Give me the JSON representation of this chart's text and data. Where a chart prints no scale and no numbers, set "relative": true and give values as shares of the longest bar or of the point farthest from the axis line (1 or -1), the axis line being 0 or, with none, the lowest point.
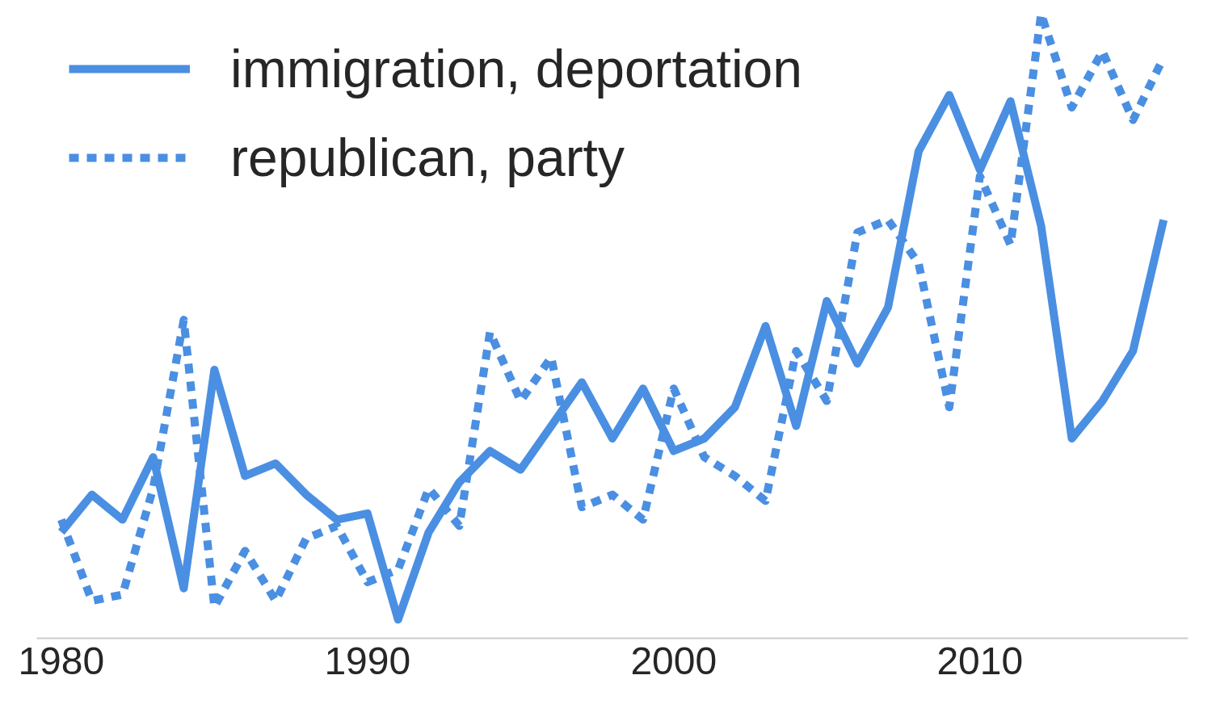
{
  "chart_data": {
    "type": "line",
    "relative": true,
    "x": [
      1980,
      1981,
      1982,
      1983,
      1984,
      1985,
      1986,
      1987,
      1988,
      1989,
      1990,
      1991,
      1992,
      1993,
      1994,
      1995,
      1996,
      1997,
      1998,
      1999,
      2000,
      2001,
      2002,
      2003,
      2004,
      2005,
      2006,
      2007,
      2008,
      2009,
      2010,
      2011,
      2012,
      2013,
      2014,
      2015,
      2016
    ],
    "xlim": [
      1979.2,
      2016.8
    ],
    "xticks": [
      1980,
      1990,
      2000,
      2010
    ],
    "series": [
      {
        "name": "immigration, deportation",
        "color": "#4a8fe2",
        "line_style": "solid",
        "values": [
          0.17,
          0.23,
          0.19,
          0.29,
          0.08,
          0.43,
          0.26,
          0.28,
          0.23,
          0.19,
          0.2,
          0.03,
          0.17,
          0.25,
          0.3,
          0.27,
          0.34,
          0.41,
          0.32,
          0.4,
          0.3,
          0.32,
          0.37,
          0.5,
          0.34,
          0.54,
          0.44,
          0.53,
          0.78,
          0.87,
          0.75,
          0.86,
          0.66,
          0.32,
          0.38,
          0.46,
          0.67
        ]
      },
      {
        "name": "republican, party",
        "color": "#4a8fe2",
        "line_style": "dotted",
        "values": [
          0.19,
          0.06,
          0.07,
          0.24,
          0.51,
          0.05,
          0.14,
          0.06,
          0.16,
          0.18,
          0.09,
          0.11,
          0.24,
          0.18,
          0.49,
          0.38,
          0.45,
          0.21,
          0.23,
          0.19,
          0.4,
          0.29,
          0.26,
          0.22,
          0.46,
          0.38,
          0.65,
          0.67,
          0.6,
          0.37,
          0.74,
          0.63,
          1,
          0.85,
          0.94,
          0.83,
          0.93
        ]
      }
    ],
    "legend": "top left",
    "grid": false,
    "marker": "none"
  }
}
